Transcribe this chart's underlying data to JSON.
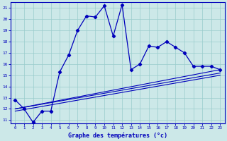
{
  "xlabel": "Graphe des températures (°c)",
  "xlim": [
    -0.5,
    23.5
  ],
  "ylim": [
    10.7,
    21.5
  ],
  "yticks": [
    11,
    12,
    13,
    14,
    15,
    16,
    17,
    18,
    19,
    20,
    21
  ],
  "xticks": [
    0,
    1,
    2,
    3,
    4,
    5,
    6,
    7,
    8,
    9,
    10,
    11,
    12,
    13,
    14,
    15,
    16,
    17,
    18,
    19,
    20,
    21,
    22,
    23
  ],
  "bg_color": "#cce8e8",
  "line_color": "#0000bb",
  "grid_color": "#99cccc",
  "series1": {
    "x": [
      0,
      1,
      2,
      3,
      4,
      5,
      6,
      7,
      8,
      9,
      10,
      11,
      12,
      13,
      14,
      15,
      16,
      17,
      18,
      19,
      20,
      21,
      22,
      23
    ],
    "y": [
      12.8,
      12.0,
      10.8,
      11.8,
      11.8,
      15.3,
      16.8,
      19.0,
      20.3,
      20.2,
      21.2,
      18.5,
      21.3,
      15.5,
      16.0,
      17.6,
      17.5,
      18.0,
      17.5,
      17.0,
      15.8,
      15.8,
      15.8,
      15.5
    ]
  },
  "series2": {
    "x": [
      0,
      23
    ],
    "y": [
      12.0,
      15.5
    ]
  },
  "series3": {
    "x": [
      0,
      23
    ],
    "y": [
      12.0,
      15.2
    ]
  },
  "series4": {
    "x": [
      0,
      23
    ],
    "y": [
      11.8,
      15.0
    ]
  }
}
